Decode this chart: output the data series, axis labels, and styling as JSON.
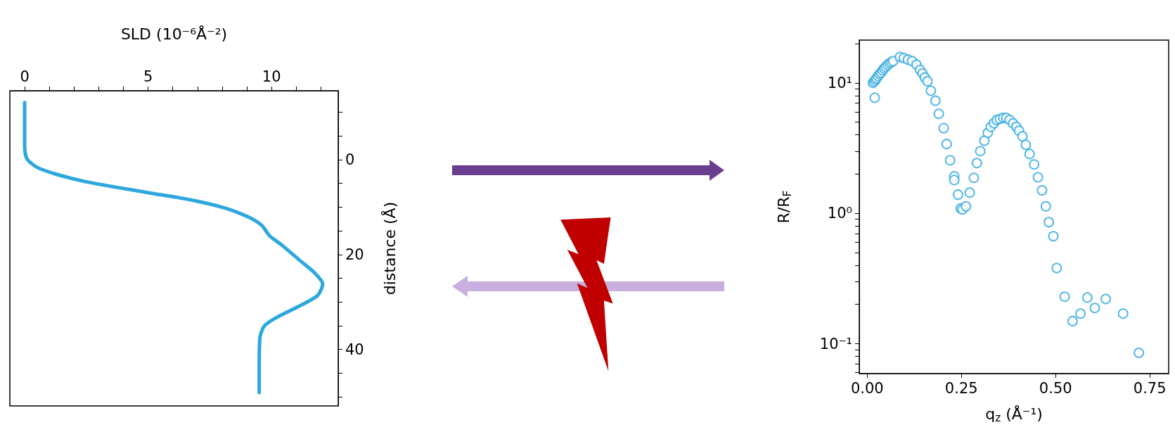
{
  "chart_data": [
    {
      "type": "line",
      "xlabel": "SLD (10⁻⁶Å⁻²)",
      "ylabel": "distance (Å)",
      "xlim": [
        -0.6,
        12.7
      ],
      "ylim": [
        51.9,
        -14.5
      ],
      "xticks": [
        0,
        {
          "value": 1,
          "label": null
        },
        {
          "value": 2,
          "label": null
        },
        {
          "value": 3,
          "label": null
        },
        {
          "value": 4,
          "label": null
        },
        5,
        {
          "value": 6,
          "label": null
        },
        {
          "value": 7,
          "label": null
        },
        {
          "value": 8,
          "label": null
        },
        {
          "value": 9,
          "label": null
        },
        10,
        {
          "value": 11,
          "label": null
        },
        {
          "value": 12,
          "label": null
        }
      ],
      "yticks": [
        {
          "value": -10,
          "label": null
        },
        {
          "value": -5,
          "label": null
        },
        0,
        {
          "value": 5,
          "label": null
        },
        {
          "value": 10,
          "label": null
        },
        {
          "value": 15,
          "label": null
        },
        20,
        {
          "value": 25,
          "label": null
        },
        {
          "value": 30,
          "label": null
        },
        {
          "value": 35,
          "label": null
        },
        40,
        {
          "value": 45,
          "label": null
        },
        {
          "value": 50,
          "label": null
        }
      ],
      "grid": false,
      "marker": "none",
      "line_style": "solid",
      "series": [
        {
          "color": "#2ea8dc",
          "x": [
            0,
            0,
            0.09,
            0.49,
            1.29,
            2.42,
            3.79,
            5.27,
            6.75,
            8.11,
            9.02,
            9.59,
            9.93,
            10.39,
            11.07,
            11.75,
            12.07,
            11.87,
            11.07,
            10.16,
            9.7,
            9.53,
            9.5,
            9.5
          ],
          "values": [
            -12.0,
            -2.9,
            -0.2,
            1.6,
            3.1,
            4.6,
            5.9,
            7.2,
            8.5,
            10.2,
            12.0,
            13.8,
            16.1,
            17.9,
            20.9,
            23.9,
            26.2,
            28.6,
            31.0,
            33.4,
            35.1,
            37.5,
            43.4,
            49.1
          ]
        }
      ]
    },
    {
      "type": "scatter",
      "xlabel": "q$_{z}$ (Å⁻¹)",
      "ylabel": "R/R$_{F}$",
      "xlim": [
        -0.021,
        0.8
      ],
      "ylim": [
        0.059,
        21.3
      ],
      "log": "y",
      "xticks": [
        {
          "value": 0,
          "label": "0.00"
        },
        0.25,
        {
          "value": 0.5,
          "label": "0.50"
        },
        0.75
      ],
      "yticks": [
        {
          "value": 0.06,
          "label": null
        },
        {
          "value": 0.07,
          "label": null
        },
        {
          "value": 0.08,
          "label": null
        },
        {
          "value": 0.09,
          "label": null
        },
        {
          "value": 0.1,
          "label": "10⁻¹"
        },
        {
          "value": 0.2,
          "label": null
        },
        {
          "value": 0.3,
          "label": null
        },
        {
          "value": 0.4,
          "label": null
        },
        {
          "value": 0.5,
          "label": null
        },
        {
          "value": 0.6,
          "label": null
        },
        {
          "value": 0.7,
          "label": null
        },
        {
          "value": 0.8,
          "label": null
        },
        {
          "value": 0.9,
          "label": null
        },
        {
          "value": 1,
          "label": "10⁰"
        },
        {
          "value": 2,
          "label": null
        },
        {
          "value": 3,
          "label": null
        },
        {
          "value": 4,
          "label": null
        },
        {
          "value": 5,
          "label": null
        },
        {
          "value": 6,
          "label": null
        },
        {
          "value": 7,
          "label": null
        },
        {
          "value": 8,
          "label": null
        },
        {
          "value": 9,
          "label": null
        },
        {
          "value": 10,
          "label": "10¹"
        },
        {
          "value": 20,
          "label": null
        }
      ],
      "grid": false,
      "marker": "circle",
      "series": [
        {
          "color": "#2ea8dc",
          "x": [
            0.015,
            0.019,
            0.022,
            0.025,
            0.029,
            0.033,
            0.037,
            0.041,
            0.045,
            0.049,
            0.054,
            0.059,
            0.064,
            0.069,
            0.02,
            0.087,
            0.097,
            0.108,
            0.119,
            0.131,
            0.14,
            0.147,
            0.153,
            0.16,
            0.169,
            0.181,
            0.19,
            0.203,
            0.211,
            0.22,
            0.231,
            0.231,
            0.241,
            0.248,
            0.253,
            0.262,
            0.272,
            0.283,
            0.291,
            0.3,
            0.311,
            0.32,
            0.328,
            0.336,
            0.344,
            0.352,
            0.361,
            0.369,
            0.378,
            0.387,
            0.396,
            0.403,
            0.412,
            0.421,
            0.431,
            0.443,
            0.453,
            0.464,
            0.474,
            0.482,
            0.494,
            0.503,
            0.524,
            0.545,
            0.566,
            0.584,
            0.604,
            0.633,
            0.679,
            0.721
          ],
          "values": [
            10.0,
            10.25,
            10.6,
            10.9,
            11.3,
            11.7,
            12.0,
            12.5,
            12.9,
            13.3,
            13.7,
            14.1,
            14.4,
            14.7,
            7.7,
            15.8,
            15.5,
            15.1,
            14.7,
            13.8,
            12.6,
            11.8,
            11.0,
            10.3,
            8.7,
            7.3,
            5.8,
            4.5,
            3.4,
            2.55,
            1.92,
            1.8,
            1.39,
            1.09,
            1.07,
            1.13,
            1.44,
            1.87,
            2.43,
            3.0,
            3.6,
            4.15,
            4.6,
            4.9,
            5.2,
            5.3,
            5.4,
            5.4,
            5.2,
            4.9,
            4.6,
            4.3,
            3.9,
            3.35,
            2.85,
            2.37,
            1.89,
            1.5,
            1.13,
            0.855,
            0.667,
            0.38,
            0.229,
            0.149,
            0.17,
            0.226,
            0.188,
            0.22,
            0.17,
            0.085
          ]
        }
      ]
    }
  ]
}
